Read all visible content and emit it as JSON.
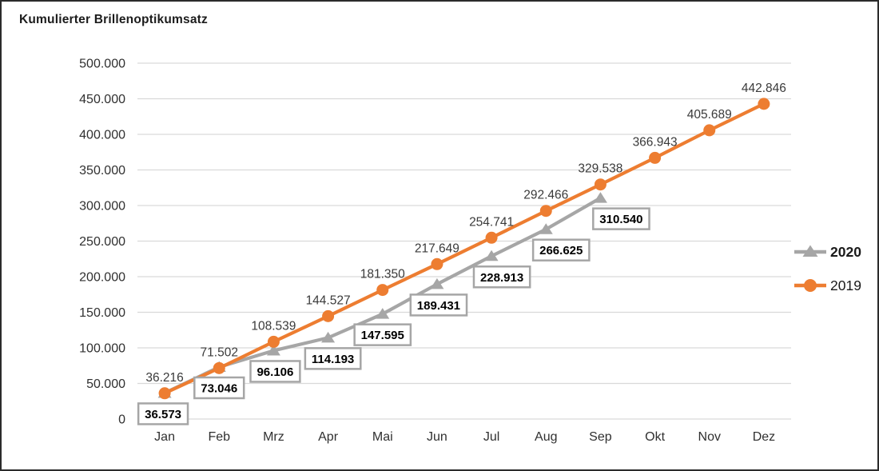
{
  "chart_data": {
    "type": "line",
    "title": "Kumulierter Brillenoptikumsatz",
    "categories": [
      "Jan",
      "Feb",
      "Mrz",
      "Apr",
      "Mai",
      "Jun",
      "Jul",
      "Aug",
      "Sep",
      "Okt",
      "Nov",
      "Dez"
    ],
    "y_axis": {
      "min": 0,
      "max": 500000,
      "step": 50000,
      "tick_labels": [
        "0",
        "50.000",
        "100.000",
        "150.000",
        "200.000",
        "250.000",
        "300.000",
        "350.000",
        "400.000",
        "450.000",
        "500.000"
      ]
    },
    "grid": true,
    "colors": {
      "grid": "#d9d9d9",
      "axis_text": "#303030",
      "label_text": "#3a3a3a",
      "boxed_label_text": "#000000",
      "legend_text": "#1a1a1a",
      "series_2020": "#a6a6a6",
      "series_2019": "#ed7d31"
    },
    "series": [
      {
        "name": "2020",
        "color": "#a6a6a6",
        "marker": "triangle",
        "label_style": "boxed",
        "values": [
          36573,
          73046,
          96106,
          114193,
          147595,
          189431,
          228913,
          266625,
          310540
        ],
        "labels": [
          "36.573",
          "73.046",
          "96.106",
          "114.193",
          "147.595",
          "189.431",
          "228.913",
          "266.625",
          "310.540"
        ]
      },
      {
        "name": "2019",
        "color": "#ed7d31",
        "marker": "circle",
        "label_style": "plain",
        "values": [
          36216,
          71502,
          108539,
          144527,
          181350,
          217649,
          254741,
          292466,
          329538,
          366943,
          405689,
          442846
        ],
        "labels": [
          "36.216",
          "71.502",
          "108.539",
          "144.527",
          "181.350",
          "217.649",
          "254.741",
          "292.466",
          "329.538",
          "366.943",
          "405.689",
          "442.846"
        ]
      }
    ],
    "legend": {
      "position": "right",
      "entries": [
        {
          "label": "2020",
          "bold": true
        },
        {
          "label": "2019",
          "bold": false
        }
      ]
    }
  }
}
